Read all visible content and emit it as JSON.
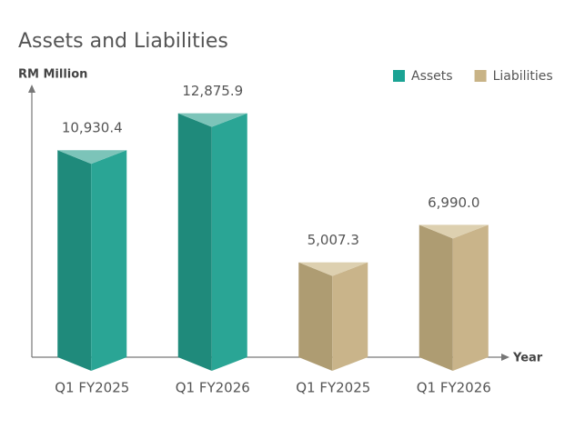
{
  "chart_data": {
    "type": "bar",
    "title": "Assets and Liabilities",
    "y_label": "RM Million",
    "x_label": "Year",
    "categories": [
      "Q1 FY2025",
      "Q1 FY2026",
      "Q1 FY2025",
      "Q1 FY2026"
    ],
    "series": [
      {
        "name": "Assets",
        "color": "#1ba394",
        "values": [
          10930.4,
          12875.9,
          null,
          null
        ],
        "value_labels": [
          "10,930.4",
          "12,875.9",
          null,
          null
        ]
      },
      {
        "name": "Liabilities",
        "color": "#c8b386",
        "values": [
          null,
          null,
          5007.3,
          6990.0
        ],
        "value_labels": [
          null,
          null,
          "5,007.3",
          "6,990.0"
        ]
      }
    ],
    "ylim": [
      0,
      14300
    ],
    "legend": "top-right"
  }
}
